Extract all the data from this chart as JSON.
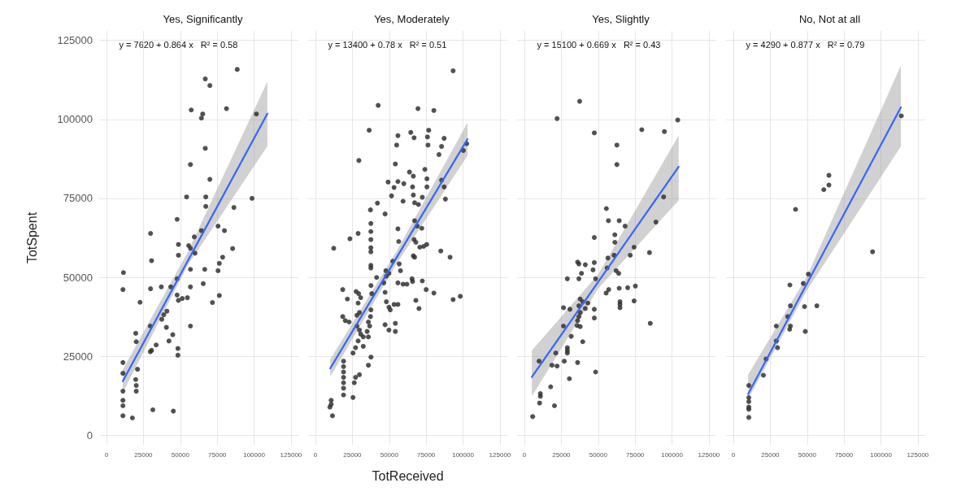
{
  "chart_data": [
    {
      "type": "scatter",
      "title": "Yes, Significantly",
      "ylabel": "TotSpent",
      "annotations": [
        "y = 7620 + 0.864 x   R² = 0.58"
      ],
      "xlim": [
        -5000,
        130000
      ],
      "ylim": [
        -3000,
        128000
      ],
      "xticks": [
        0,
        25000,
        50000,
        75000,
        100000,
        125000
      ],
      "yticks": [
        0,
        25000,
        50000,
        75000,
        100000,
        125000
      ],
      "grid": true,
      "series": [
        {
          "marker": "circle",
          "color": "#333333",
          "x": [
            88560,
            66900,
            70000,
            57360,
            65160,
            64300,
            81280,
            101550,
            66900,
            56840,
            70000,
            54240,
            67240,
            67240,
            98600,
            86300,
            47830,
            75560,
            79890,
            29810,
            59440,
            64300,
            48700,
            55630,
            56840,
            59960,
            48700,
            85440,
            30500,
            78680,
            76430,
            75560,
            56840,
            66540,
            11440,
            11090,
            29810,
            37090,
            43500,
            47830,
            56840,
            65510,
            47830,
            48700,
            51300,
            54760,
            76430,
            71750,
            22700,
            40900,
            38820,
            37430,
            29630,
            40550,
            56840,
            44880,
            42280,
            19760,
            20100,
            33620,
            29630,
            30500,
            48350,
            48350,
            11090,
            11090,
            11090,
            11090,
            11090,
            11090,
            20970,
            19760,
            20100,
            20100,
            31370,
            45230,
            17500
          ],
          "values": [
            115800,
            112800,
            110700,
            102970,
            101700,
            100400,
            103400,
            101700,
            90830,
            85700,
            81000,
            75440,
            75440,
            72450,
            75000,
            72100,
            68350,
            66210,
            64760,
            63900,
            62790,
            64760,
            60400,
            60050,
            59200,
            57660,
            56980,
            59110,
            55270,
            56380,
            54410,
            52100,
            52530,
            52530,
            51500,
            46120,
            46380,
            46980,
            46980,
            49540,
            46980,
            48000,
            44400,
            42700,
            43300,
            43550,
            44240,
            42020,
            42100,
            39280,
            38170,
            36720,
            34580,
            34150,
            34580,
            31840,
            29870,
            32280,
            29620,
            28590,
            26450,
            26880,
            27480,
            25340,
            23030,
            19610,
            13960,
            11070,
            9360,
            6190,
            20900,
            17650,
            15770,
            13960,
            8070,
            7650,
            5500
          ]
        },
        {
          "type": "line",
          "color": "#3366ff",
          "line_style": "solid",
          "x": [
            11000,
            55000,
            109000
          ],
          "values": [
            17124,
            55140,
            101796
          ],
          "lower": [
            13500,
            53800,
            91500
          ],
          "upper": [
            20800,
            58000,
            112000
          ]
        }
      ]
    },
    {
      "type": "scatter",
      "title": "Yes, Moderately",
      "xlabel": "TotReceived",
      "annotations": [
        "y = 13400 + 0.78 x   R² = 0.51"
      ],
      "xlim": [
        -5000,
        130000
      ],
      "ylim": [
        -3000,
        128000
      ],
      "xticks": [
        0,
        25000,
        50000,
        75000,
        100000,
        125000
      ],
      "yticks": [
        0,
        25000,
        50000,
        75000,
        100000,
        125000
      ],
      "grid": true,
      "tick_labels": "x",
      "series": [
        {
          "marker": "circle",
          "color": "#333333",
          "x": [
            93260,
            42460,
            69430,
            80210,
            36370,
            55850,
            54980,
            64550,
            66820,
            76730,
            75860,
            76210,
            87170,
            85430,
            83690,
            102490,
            100220,
            29410,
            54110,
            49190,
            53240,
            55850,
            59860,
            63680,
            66300,
            74120,
            75520,
            75520,
            85430,
            87170,
            88040,
            51500,
            59330,
            65770,
            66300,
            67160,
            69770,
            72380,
            41930,
            37240,
            47150,
            37500,
            37500,
            37500,
            37500,
            37500,
            37500,
            37500,
            28880,
            23320,
            12350,
            55850,
            56370,
            67160,
            68900,
            72040,
            66820,
            68030,
            70640,
            73250,
            75340,
            84910,
            91180,
            66300,
            67160,
            52370,
            56720,
            57590,
            47680,
            49760,
            48020,
            41410,
            37580,
            38120,
            46280,
            47150,
            55850,
            59330,
            61940,
            65420,
            65770,
            72380,
            74990,
            80210,
            93260,
            98130,
            18440,
            21580,
            27490,
            29230,
            30620,
            28880,
            29750,
            28010,
            18440,
            20180,
            22790,
            37580,
            37240,
            35840,
            36720,
            34970,
            35840,
            32360,
            28010,
            29750,
            30620,
            48020,
            49760,
            50630,
            53240,
            55850,
            68030,
            70120,
            47150,
            49760,
            54110,
            54110,
            28880,
            27140,
            25400,
            32360,
            37580,
            35840,
            19000,
            19000,
            19000,
            19000,
            19000,
            19000,
            19000,
            27140,
            29750,
            26270,
            25400,
            10610,
            10610,
            9740,
            11480
          ],
          "values": [
            115370,
            104430,
            103400,
            102800,
            96560,
            94850,
            91860,
            95880,
            94170,
            96560,
            94430,
            91860,
            93990,
            91430,
            88870,
            92290,
            90150,
            86980,
            85880,
            80150,
            78440,
            80320,
            79650,
            83310,
            82030,
            84160,
            81170,
            78610,
            80740,
            78610,
            74760,
            75790,
            74080,
            78610,
            76040,
            73610,
            73050,
            75360,
            73480,
            71340,
            70060,
            67060,
            64500,
            61930,
            59370,
            58090,
            53810,
            52950,
            63900,
            62190,
            59200,
            65350,
            61340,
            67920,
            66210,
            65530,
            61930,
            61090,
            59540,
            59800,
            60400,
            58340,
            56380,
            56800,
            56380,
            55100,
            54240,
            52100,
            52100,
            51250,
            50390,
            49960,
            47400,
            44840,
            48250,
            45260,
            48250,
            47830,
            47830,
            49540,
            48690,
            48860,
            46120,
            45010,
            42950,
            43980,
            46120,
            43130,
            45520,
            44840,
            43560,
            41840,
            38850,
            37990,
            37560,
            36290,
            35860,
            39700,
            37560,
            35860,
            34580,
            32870,
            31150,
            31150,
            34580,
            33300,
            32010,
            42270,
            40560,
            39700,
            41410,
            41410,
            42700,
            40130,
            35000,
            33300,
            35430,
            32870,
            29870,
            27740,
            26030,
            28160,
            24740,
            22180,
            23460,
            21750,
            20040,
            18330,
            16620,
            14910,
            12770,
            18330,
            19190,
            16620,
            11980,
            11070,
            9780,
            8920,
            6190
          ]
        },
        {
          "type": "line",
          "color": "#3366ff",
          "line_style": "solid",
          "x": [
            10000,
            55000,
            103000
          ],
          "values": [
            21200,
            56300,
            93740
          ],
          "lower": [
            18500,
            54300,
            88500
          ],
          "upper": [
            24000,
            58300,
            99000
          ]
        }
      ]
    },
    {
      "type": "scatter",
      "title": "Yes, Slightly",
      "annotations": [
        "y = 15100 + 0.669 x   R² = 0.43"
      ],
      "xlim": [
        -5000,
        130000
      ],
      "ylim": [
        -3000,
        128000
      ],
      "xticks": [
        0,
        25000,
        50000,
        75000,
        100000,
        125000
      ],
      "yticks": [
        0,
        25000,
        50000,
        75000,
        100000,
        125000
      ],
      "grid": true,
      "tick_labels": "x",
      "series": [
        {
          "marker": "circle",
          "color": "#333333",
          "x": [
            37410,
            22100,
            103880,
            79520,
            94830,
            47330,
            62640,
            62640,
            94310,
            89090,
            55510,
            56900,
            64210,
            68210,
            47330,
            61250,
            61250,
            74300,
            71690,
            84740,
            56550,
            60730,
            36020,
            36890,
            41240,
            47330,
            46460,
            29060,
            36890,
            38630,
            48200,
            56030,
            62120,
            63860,
            55340,
            57070,
            64210,
            69950,
            75170,
            64730,
            64730,
            64730,
            74300,
            37760,
            39500,
            36890,
            41240,
            42980,
            47330,
            47330,
            26450,
            30800,
            37760,
            36890,
            36020,
            35670,
            37760,
            26450,
            31670,
            39500,
            85260,
            29060,
            29060,
            29060,
            21230,
            26970,
            36020,
            9920,
            18620,
            22100,
            48200,
            30450,
            17750,
            10790,
            10790,
            10270,
            20360,
            5570
          ],
          "values": [
            105710,
            100240,
            99810,
            96730,
            96130,
            95710,
            91860,
            85700,
            75440,
            67490,
            71770,
            67920,
            67920,
            66210,
            62620,
            63470,
            61090,
            59540,
            56980,
            57830,
            56120,
            56980,
            54840,
            54240,
            53980,
            54670,
            52360,
            49540,
            49540,
            51250,
            49540,
            52960,
            52100,
            51250,
            45010,
            46120,
            46550,
            46720,
            47230,
            42270,
            41410,
            40390,
            42530,
            43130,
            42270,
            40990,
            40130,
            41840,
            39880,
            37140,
            40390,
            39880,
            38850,
            37560,
            36290,
            34750,
            34410,
            34580,
            31330,
            29620,
            35430,
            27740,
            26880,
            26030,
            26030,
            23460,
            23030,
            23460,
            22180,
            21920,
            20040,
            17910,
            15340,
            13200,
            12340,
            10210,
            9360,
            5930
          ]
        },
        {
          "type": "line",
          "color": "#3366ff",
          "line_style": "solid",
          "x": [
            5000,
            50000,
            104500
          ],
          "values": [
            18445,
            48550,
            85010
          ],
          "lower": [
            12340,
            46500,
            74330
          ],
          "upper": [
            26880,
            51000,
            94850
          ]
        }
      ]
    },
    {
      "type": "scatter",
      "title": "No, Not at all",
      "annotations": [
        "y = 4290 + 0.877 x   R² = 0.79"
      ],
      "xlim": [
        -5000,
        130000
      ],
      "ylim": [
        -3000,
        128000
      ],
      "xticks": [
        0,
        25000,
        50000,
        75000,
        100000,
        125000
      ],
      "yticks": [
        0,
        25000,
        50000,
        75000,
        100000,
        125000
      ],
      "grid": true,
      "tick_labels": "x",
      "series": [
        {
          "marker": "circle",
          "color": "#333333",
          "x": [
            113800,
            64730,
            64730,
            61250,
            42110,
            94310,
            50810,
            47330,
            38280,
            38630,
            48200,
            56550,
            36890,
            29060,
            38630,
            38110,
            48720,
            29060,
            29930,
            22100,
            20360,
            10440,
            10440,
            10440,
            10440,
            10440,
            10440
          ],
          "values": [
            101100,
            82280,
            79210,
            77750,
            71510,
            58090,
            51000,
            48080,
            47570,
            40990,
            40730,
            40990,
            37560,
            34580,
            34580,
            33550,
            32870,
            29870,
            27740,
            24140,
            19010,
            15770,
            11920,
            10640,
            8920,
            8240,
            5670
          ]
        },
        {
          "type": "line",
          "color": "#3366ff",
          "line_style": "solid",
          "x": [
            10000,
            50000,
            113500
          ],
          "values": [
            13060,
            48140,
            103830
          ],
          "lower": [
            11490,
            46000,
            91430
          ],
          "upper": [
            19190,
            50500,
            117080
          ]
        }
      ]
    }
  ]
}
